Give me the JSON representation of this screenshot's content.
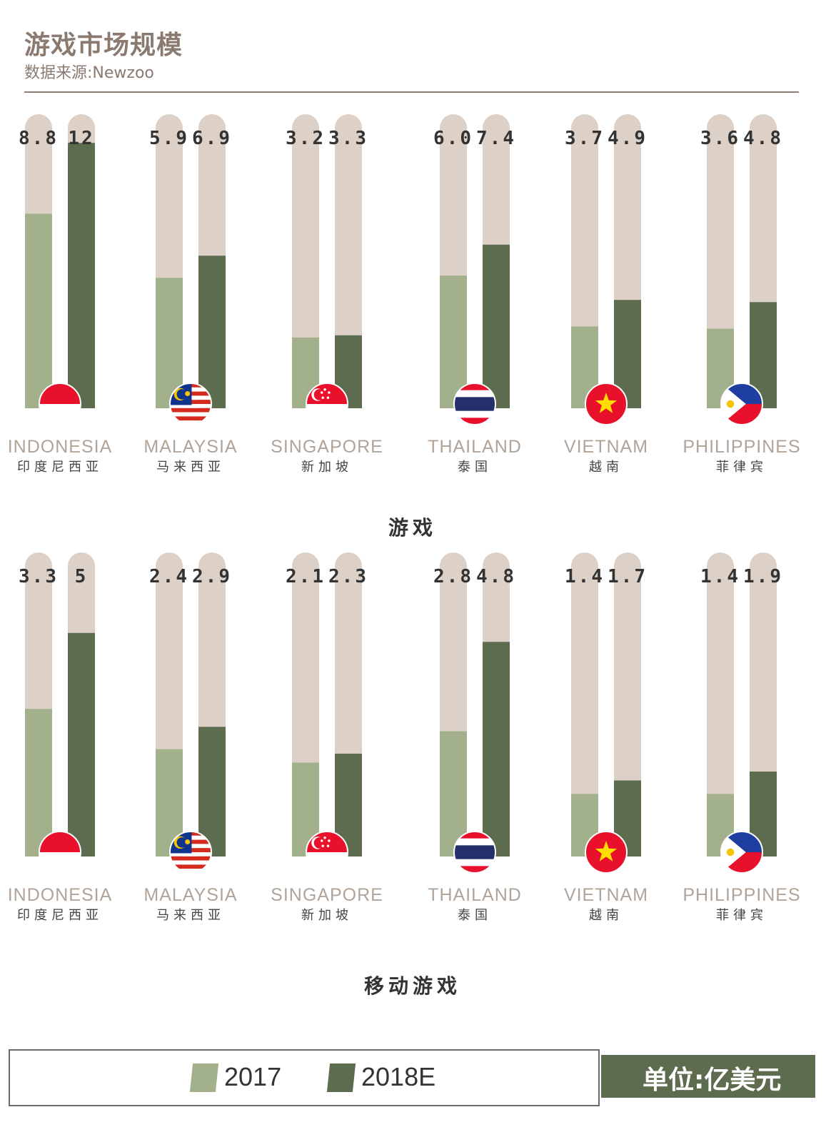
{
  "header": {
    "title": "游戏市场规模",
    "source": "数据来源:Newzoo"
  },
  "colors": {
    "track": "#ddd1c7",
    "y2017": "#a3b08c",
    "y2018": "#5d6b4e",
    "label_en": "#b0a49a",
    "label_cn": "#444444"
  },
  "countries": [
    {
      "en": "INDONESIA",
      "cn": "印度尼西亚",
      "flag": "indonesia-flag-icon"
    },
    {
      "en": "MALAYSIA",
      "cn": "马来西亚",
      "flag": "malaysia-flag-icon"
    },
    {
      "en": "SINGAPORE",
      "cn": "新加坡",
      "flag": "singapore-flag-icon"
    },
    {
      "en": "THAILAND",
      "cn": "泰国",
      "flag": "thailand-flag-icon"
    },
    {
      "en": "VIETNAM",
      "cn": "越南",
      "flag": "vietnam-flag-icon"
    },
    {
      "en": "PHILIPPINES",
      "cn": "菲律宾",
      "flag": "philippines-flag-icon"
    }
  ],
  "legend": {
    "y2017": "2017",
    "y2018": "2018E"
  },
  "unit": "单位:亿美元",
  "chart_data": [
    {
      "type": "bar",
      "title": "游戏",
      "categories": [
        "INDONESIA",
        "MALAYSIA",
        "SINGAPORE",
        "THAILAND",
        "VIETNAM",
        "PHILIPPINES"
      ],
      "series": [
        {
          "name": "2017",
          "values": [
            8.8,
            5.9,
            3.2,
            6.0,
            3.7,
            3.6
          ],
          "labels": [
            "8.8",
            "5.9",
            "3.2",
            "6.0",
            "3.7",
            "3.6"
          ]
        },
        {
          "name": "2018E",
          "values": [
            12,
            6.9,
            3.3,
            7.4,
            4.9,
            4.8
          ],
          "labels": [
            "12",
            "6.9",
            "3.3",
            "7.4",
            "4.9",
            "4.8"
          ]
        }
      ]
    },
    {
      "type": "bar",
      "title": "移动游戏",
      "categories": [
        "INDONESIA",
        "MALAYSIA",
        "SINGAPORE",
        "THAILAND",
        "VIETNAM",
        "PHILIPPINES"
      ],
      "series": [
        {
          "name": "2017",
          "values": [
            3.3,
            2.4,
            2.1,
            2.8,
            1.4,
            1.4
          ],
          "labels": [
            "3.3",
            "2.4",
            "2.1",
            "2.8",
            "1.4",
            "1.4"
          ]
        },
        {
          "name": "2018E",
          "values": [
            5,
            2.9,
            2.3,
            4.8,
            1.7,
            1.9
          ],
          "labels": [
            "5",
            "2.9",
            "2.3",
            "4.8",
            "1.7",
            "1.9"
          ]
        }
      ]
    }
  ]
}
